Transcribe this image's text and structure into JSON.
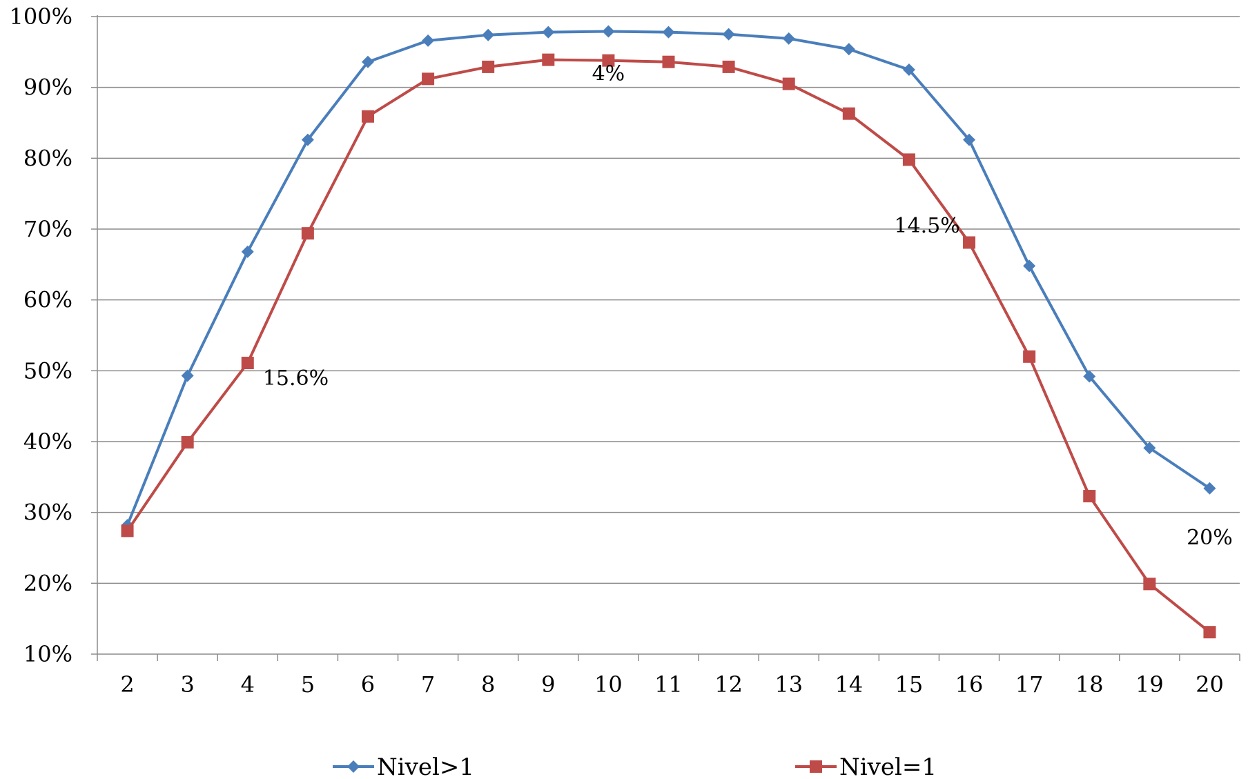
{
  "chart_data": {
    "type": "line",
    "title": "",
    "xlabel": "",
    "ylabel": "",
    "categories": [
      "2",
      "3",
      "4",
      "5",
      "6",
      "7",
      "8",
      "9",
      "10",
      "11",
      "12",
      "13",
      "14",
      "15",
      "16",
      "17",
      "18",
      "19",
      "20"
    ],
    "ylim": [
      10,
      100
    ],
    "y_ticks": [
      "10%",
      "20%",
      "30%",
      "40%",
      "50%",
      "60%",
      "70%",
      "80%",
      "90%",
      "100%"
    ],
    "grid": "horizontal",
    "legend_position": "bottom",
    "series": [
      {
        "name": "Nivel>1",
        "color": "#4a7ebb",
        "marker": "diamond",
        "values": [
          28.2,
          49.3,
          66.8,
          82.6,
          93.6,
          96.6,
          97.4,
          97.8,
          97.9,
          97.8,
          97.5,
          96.9,
          95.4,
          92.5,
          82.6,
          64.8,
          49.2,
          39.1,
          33.4
        ]
      },
      {
        "name": "Nivel=1",
        "color": "#be4b48",
        "marker": "square",
        "values": [
          27.4,
          39.9,
          51.1,
          69.4,
          85.9,
          91.2,
          92.9,
          93.9,
          93.8,
          93.6,
          92.9,
          90.5,
          86.3,
          79.8,
          68.1,
          52.0,
          32.3,
          19.9,
          13.1
        ]
      }
    ],
    "annotations": [
      {
        "text": "15.6%",
        "x": "4.8",
        "y": 48
      },
      {
        "text": "4%",
        "x": "10",
        "y": 91
      },
      {
        "text": "14.5%",
        "x": "15.3",
        "y": 69.5
      },
      {
        "text": "20%",
        "x": "20",
        "y": 25.5
      }
    ]
  }
}
